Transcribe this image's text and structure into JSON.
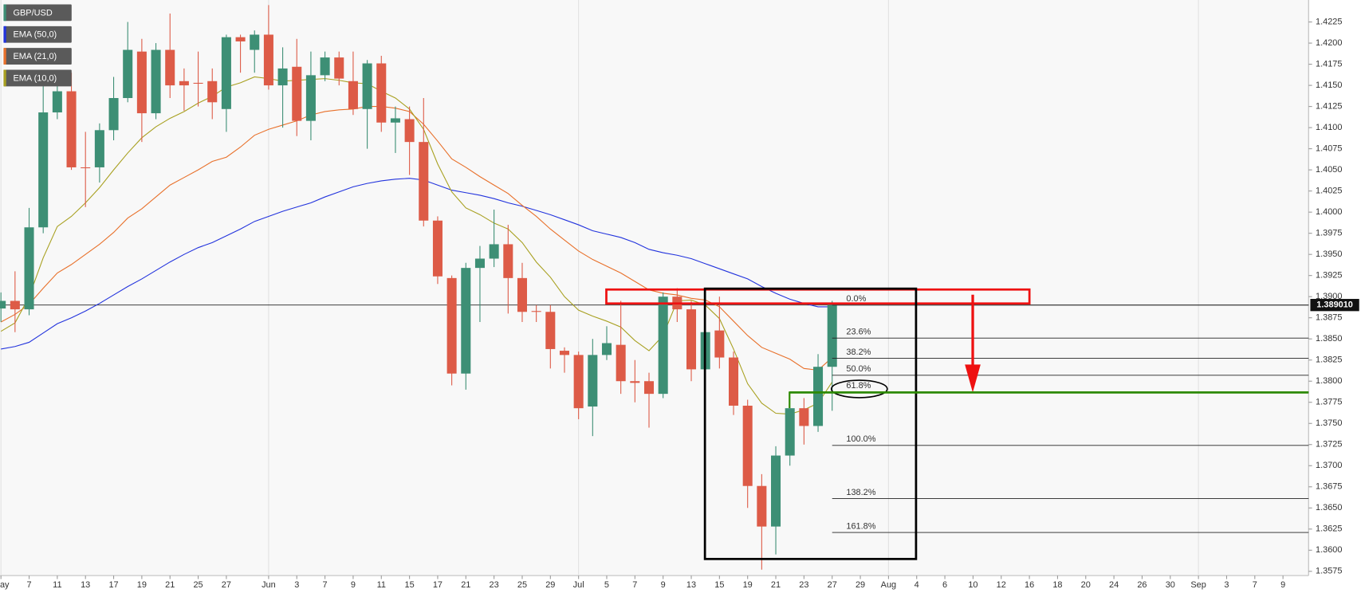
{
  "chart_data": {
    "type": "candlestick",
    "categories": [
      "May",
      null,
      "7",
      null,
      "11",
      null,
      "13",
      null,
      "17",
      null,
      "19",
      null,
      "21",
      null,
      "25",
      null,
      "27",
      null,
      null,
      "Jun",
      null,
      "3",
      null,
      "7",
      null,
      "9",
      null,
      "11",
      null,
      "15",
      null,
      "17",
      null,
      "21",
      null,
      "23",
      null,
      "25",
      null,
      "29",
      null,
      "Jul",
      null,
      "5",
      null,
      "7",
      null,
      "9",
      null,
      "13",
      null,
      "15",
      null,
      "19",
      null,
      "21",
      null,
      "23",
      null,
      "27",
      null,
      "29",
      null,
      "Aug",
      null,
      "4",
      null,
      "6",
      null,
      "10",
      null,
      "12",
      null,
      "16",
      null,
      "18",
      null,
      "20",
      null,
      "24",
      null,
      "26",
      null,
      "30",
      null,
      "Sep",
      null,
      "3",
      null,
      "7",
      null,
      "9"
    ],
    "candles": {
      "name": "GBP/USD",
      "color": "#3d8f75",
      "up_color": "#3d8f75",
      "down_color": "#dd5b47",
      "open": [
        1.3886,
        1.3895,
        1.3885,
        1.3982,
        1.4118,
        1.4143,
        1.4053,
        1.4053,
        1.4097,
        1.4135,
        1.419,
        1.4117,
        1.4192,
        1.4155,
        1.4153,
        1.4155,
        1.4122,
        1.4207,
        1.4192,
        1.421,
        1.415,
        1.4172,
        1.4108,
        1.4162,
        1.4183,
        1.4155,
        1.4122,
        1.4176,
        1.4106,
        1.411,
        1.4083,
        1.399,
        1.3922,
        1.3809,
        1.3934,
        1.3945,
        1.3962,
        1.3922,
        1.3883,
        1.3882,
        1.3836,
        1.3831,
        1.377,
        1.3831,
        1.3843,
        1.38,
        1.38,
        1.3785,
        1.39,
        1.3885,
        1.3814,
        1.386,
        1.3828,
        1.3771,
        1.3676,
        1.3628,
        1.3712,
        1.3768,
        1.3747,
        1.3817,
        null,
        null,
        null,
        null,
        null,
        null,
        null,
        null,
        null,
        null,
        null,
        null,
        null,
        null,
        null,
        null,
        null,
        null,
        null,
        null,
        null,
        null,
        null,
        null,
        null,
        null,
        null,
        null,
        null,
        null,
        null,
        null
      ],
      "high": [
        1.3905,
        1.393,
        1.4005,
        1.4163,
        1.415,
        1.4165,
        1.4095,
        1.4105,
        1.416,
        1.4225,
        1.4205,
        1.42,
        1.4235,
        1.417,
        1.419,
        1.417,
        1.421,
        1.421,
        1.4215,
        1.4245,
        1.4195,
        1.4205,
        1.419,
        1.419,
        1.419,
        1.419,
        1.418,
        1.4185,
        1.4125,
        1.4125,
        1.4135,
        1.3995,
        1.3925,
        1.394,
        1.396,
        1.4003,
        1.3985,
        1.394,
        1.389,
        1.389,
        1.384,
        1.3835,
        1.385,
        1.3865,
        1.3895,
        1.3825,
        1.381,
        1.3905,
        1.391,
        1.3895,
        1.387,
        1.39,
        1.3835,
        1.3778,
        1.369,
        1.3723,
        1.3768,
        1.378,
        1.3832,
        1.3895,
        null,
        null,
        null,
        null,
        null,
        null,
        null,
        null,
        null,
        null,
        null,
        null,
        null,
        null,
        null,
        null,
        null,
        null,
        null,
        null,
        null,
        null,
        null,
        null,
        null,
        null,
        null,
        null,
        null,
        null,
        null,
        null
      ],
      "low": [
        1.387,
        1.3858,
        1.3878,
        1.3975,
        1.411,
        1.405,
        1.4006,
        1.4035,
        1.4085,
        1.413,
        1.4083,
        1.411,
        1.4135,
        1.412,
        1.4125,
        1.411,
        1.4095,
        1.4165,
        1.4165,
        1.4145,
        1.41,
        1.409,
        1.4085,
        1.4155,
        1.415,
        1.4115,
        1.4075,
        1.4095,
        1.407,
        1.4044,
        1.3983,
        1.3915,
        1.3795,
        1.379,
        1.387,
        1.3935,
        1.388,
        1.387,
        1.387,
        1.3815,
        1.381,
        1.3755,
        1.3735,
        1.3825,
        1.3785,
        1.3775,
        1.3745,
        1.378,
        1.387,
        1.38,
        1.381,
        1.3815,
        1.376,
        1.365,
        1.3577,
        1.3595,
        1.37,
        1.3725,
        1.374,
        1.3765,
        null,
        null,
        null,
        null,
        null,
        null,
        null,
        null,
        null,
        null,
        null,
        null,
        null,
        null,
        null,
        null,
        null,
        null,
        null,
        null,
        null,
        null,
        null,
        null,
        null,
        null,
        null,
        null,
        null,
        null,
        null,
        null
      ],
      "close": [
        1.3895,
        1.3885,
        1.3982,
        1.4118,
        1.4143,
        1.4053,
        1.4052,
        1.4097,
        1.4135,
        1.4192,
        1.4117,
        1.4192,
        1.415,
        1.415,
        1.4152,
        1.413,
        1.4207,
        1.4202,
        1.421,
        1.415,
        1.417,
        1.4108,
        1.4162,
        1.4183,
        1.4158,
        1.4122,
        1.4176,
        1.4106,
        1.4111,
        1.4083,
        1.399,
        1.3924,
        1.3809,
        1.3934,
        1.3945,
        1.3962,
        1.3922,
        1.3882,
        1.3882,
        1.3838,
        1.3831,
        1.3768,
        1.3831,
        1.3845,
        1.38,
        1.3798,
        1.3785,
        1.39,
        1.3885,
        1.3814,
        1.3858,
        1.3828,
        1.3771,
        1.3676,
        1.3628,
        1.3712,
        1.3768,
        1.3747,
        1.3817,
        1.389,
        null,
        null,
        null,
        null,
        null,
        null,
        null,
        null,
        null,
        null,
        null,
        null,
        null,
        null,
        null,
        null,
        null,
        null,
        null,
        null,
        null,
        null,
        null,
        null,
        null,
        null,
        null,
        null,
        null,
        null,
        null,
        null
      ]
    },
    "series": [
      {
        "name": "EMA (50,0)",
        "color": "#2233dd",
        "values": [
          1.3838,
          1.3841,
          1.3846,
          1.3857,
          1.3868,
          1.3875,
          1.3883,
          1.3892,
          1.3902,
          1.3912,
          1.3921,
          1.3931,
          1.3941,
          1.395,
          1.3958,
          1.3964,
          1.3972,
          1.398,
          1.3989,
          1.3995,
          1.4001,
          1.4006,
          1.4011,
          1.4018,
          1.4024,
          1.403,
          1.4034,
          1.4037,
          1.4039,
          1.404,
          1.4038,
          1.4032,
          1.4026,
          1.4023,
          1.402,
          1.4016,
          1.4011,
          1.4007,
          1.4002,
          1.3997,
          1.3991,
          1.3985,
          1.3978,
          1.3974,
          1.397,
          1.3964,
          1.3956,
          1.3952,
          1.3949,
          1.3945,
          1.3939,
          1.3933,
          1.3927,
          1.3921,
          1.3912,
          1.3904,
          1.3897,
          1.3892,
          1.3888,
          1.3888,
          null,
          null,
          null,
          null,
          null,
          null,
          null,
          null,
          null,
          null,
          null,
          null,
          null,
          null,
          null,
          null,
          null,
          null,
          null,
          null,
          null,
          null,
          null,
          null,
          null,
          null,
          null,
          null,
          null,
          null,
          null,
          null
        ]
      },
      {
        "name": "EMA (21,0)",
        "color": "#e8702a",
        "values": [
          1.387,
          1.3879,
          1.3891,
          1.391,
          1.3928,
          1.3938,
          1.395,
          1.3962,
          1.3976,
          1.3993,
          1.4004,
          1.4018,
          1.4032,
          1.4041,
          1.405,
          1.406,
          1.4065,
          1.4077,
          1.4091,
          1.4098,
          1.4103,
          1.4108,
          1.4115,
          1.4119,
          1.4121,
          1.4122,
          1.4125,
          1.4125,
          1.4123,
          1.4119,
          1.4104,
          1.4084,
          1.4063,
          1.4053,
          1.4042,
          1.4032,
          1.4022,
          1.4008,
          1.3995,
          1.398,
          1.3967,
          1.3954,
          1.3944,
          1.3936,
          1.3928,
          1.3918,
          1.3908,
          1.3904,
          1.3902,
          1.3898,
          1.3896,
          1.3888,
          1.3871,
          1.3854,
          1.384,
          1.3833,
          1.3826,
          1.3815,
          1.3813,
          1.3828,
          null,
          null,
          null,
          null,
          null,
          null,
          null,
          null,
          null,
          null,
          null,
          null,
          null,
          null,
          null,
          null,
          null,
          null,
          null,
          null,
          null,
          null,
          null,
          null,
          null,
          null,
          null,
          null,
          null,
          null,
          null,
          null
        ]
      },
      {
        "name": "EMA (10,0)",
        "color": "#a8a020",
        "values": [
          1.3859,
          1.3869,
          1.39,
          1.3946,
          1.3983,
          1.3995,
          1.4011,
          1.4029,
          1.405,
          1.407,
          1.4088,
          1.4101,
          1.4111,
          1.4119,
          1.4129,
          1.4137,
          1.4148,
          1.4153,
          1.416,
          1.4158,
          1.4155,
          1.4156,
          1.4157,
          1.4158,
          1.4156,
          1.4153,
          1.4152,
          1.4143,
          1.4135,
          1.4122,
          1.4098,
          1.4057,
          1.4024,
          1.4005,
          1.3997,
          1.3987,
          1.398,
          1.3964,
          1.3941,
          1.3923,
          1.39,
          1.3884,
          1.3877,
          1.3871,
          1.3864,
          1.3848,
          1.3836,
          1.3854,
          1.3895,
          1.3896,
          1.389,
          1.3874,
          1.3838,
          1.3797,
          1.3774,
          1.3762,
          1.3761,
          1.3766,
          1.3774,
          1.3799,
          null,
          null,
          null,
          null,
          null,
          null,
          null,
          null,
          null,
          null,
          null,
          null,
          null,
          null,
          null,
          null,
          null,
          null,
          null,
          null,
          null,
          null,
          null,
          null,
          null,
          null,
          null,
          null,
          null,
          null,
          null,
          null
        ]
      }
    ],
    "ylim": [
      1.357,
      1.4251
    ],
    "yticks": [
      1.4225,
      {
        "value": 1.42,
        "label": "1.4200"
      },
      1.4175,
      {
        "value": 1.415,
        "label": "1.4150"
      },
      1.4125,
      {
        "value": 1.41,
        "label": "1.4100"
      },
      1.4075,
      {
        "value": 1.405,
        "label": "1.4050"
      },
      1.4025,
      {
        "value": 1.4,
        "label": "1.4000"
      },
      1.3975,
      {
        "value": 1.395,
        "label": "1.3950"
      },
      1.3925,
      {
        "value": 1.39,
        "label": "1.3900"
      },
      1.3875,
      {
        "value": 1.385,
        "label": "1.3850"
      },
      1.3825,
      {
        "value": 1.38,
        "label": "1.3800"
      },
      1.3775,
      {
        "value": 1.375,
        "label": "1.3750"
      },
      1.3725,
      {
        "value": 1.37,
        "label": "1.3700"
      },
      1.3675,
      {
        "value": 1.365,
        "label": "1.3650"
      },
      1.3625,
      {
        "value": 1.36,
        "label": "1.3600"
      },
      1.3575
    ],
    "last_price": {
      "value": 1.38901,
      "label": "1.389010"
    },
    "fib_levels": [
      {
        "name": "0.0%",
        "price": 1.389
      },
      {
        "name": "23.6%",
        "price": 1.3851
      },
      {
        "name": "38.2%",
        "price": 1.3827
      },
      {
        "name": "50.0%",
        "price": 1.3807
      },
      {
        "name": "61.8%",
        "price": 1.3787
      },
      {
        "name": "100.0%",
        "price": 1.3724
      },
      {
        "name": "138.2%",
        "price": 1.3661
      },
      {
        "name": "161.8%",
        "price": 1.3621
      }
    ]
  }
}
